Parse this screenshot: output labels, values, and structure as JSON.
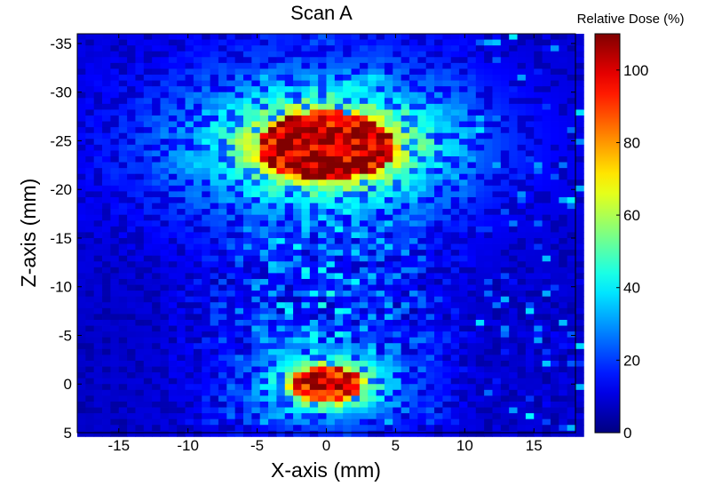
{
  "chart_data": {
    "type": "heatmap",
    "title": "Scan A",
    "xlabel": "X-axis (mm)",
    "ylabel": "Z-axis (mm)",
    "xlim": [
      -18,
      18
    ],
    "ylim": [
      5,
      -36
    ],
    "y_reversed": true,
    "xticks": [
      -15,
      -10,
      -5,
      0,
      5,
      10,
      15
    ],
    "xtick_labels": [
      "-15",
      "-10",
      "-5",
      "0",
      "5",
      "10",
      "15"
    ],
    "yticks": [
      -35,
      -30,
      -25,
      -20,
      -15,
      -10,
      -5,
      0,
      5
    ],
    "ytick_labels": [
      "-35",
      "-30",
      "-25",
      "-20",
      "-15",
      "-10",
      "-5",
      "0",
      "5"
    ],
    "colorbar": {
      "label": "Relative Dose (%)",
      "range": [
        0,
        110
      ],
      "ticks": [
        0,
        20,
        40,
        60,
        80,
        100
      ],
      "tick_labels": [
        "0",
        "20",
        "40",
        "60",
        "80",
        "100"
      ],
      "colormap": "jet"
    },
    "grid": false,
    "regions": [
      {
        "name": "upper high-dose spot",
        "center_x": 0,
        "center_z": -24.5,
        "semi_axis_x": 5,
        "semi_axis_z": 3.5,
        "peak_dose": 105
      },
      {
        "name": "lower high-dose spot",
        "center_x": 0,
        "center_z": 0,
        "semi_axis_x": 2.5,
        "semi_axis_z": 1.8,
        "peak_dose": 100
      }
    ],
    "background_dose_range": [
      5,
      45
    ]
  },
  "colors": {
    "background": "#000080",
    "colormap": "jet"
  }
}
